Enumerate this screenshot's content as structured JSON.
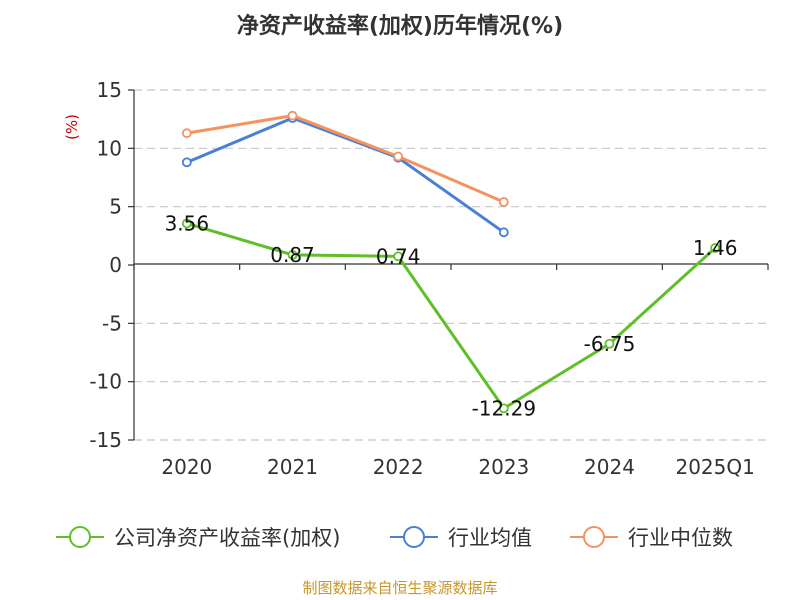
{
  "chart_data": {
    "type": "line",
    "title": "净资产收益率(加权)历年情况(%)",
    "ylabel": "(%)",
    "xlabel": "",
    "categories": [
      "2020",
      "2021",
      "2022",
      "2023",
      "2024",
      "2025Q1"
    ],
    "ylim": [
      -15,
      15
    ],
    "yticks": [
      15,
      10,
      5,
      0,
      -5,
      -10,
      -15
    ],
    "grid": true,
    "legend_position": "bottom",
    "series": [
      {
        "name": "公司净资产收益率(加权)",
        "color": "#5fbf28",
        "values": [
          3.56,
          0.87,
          0.74,
          -12.29,
          -6.75,
          1.46
        ],
        "labels": [
          "3.56",
          "0.87",
          "0.74",
          "-12.29",
          "-6.75",
          "1.46"
        ]
      },
      {
        "name": "行业均值",
        "color": "#4a7fd6",
        "values": [
          8.8,
          12.6,
          9.2,
          2.8,
          null,
          null
        ]
      },
      {
        "name": "行业中位数",
        "color": "#f5925e",
        "values": [
          11.3,
          12.8,
          9.3,
          5.4,
          null,
          null
        ]
      }
    ]
  },
  "source": "制图数据来自恒生聚源数据库"
}
